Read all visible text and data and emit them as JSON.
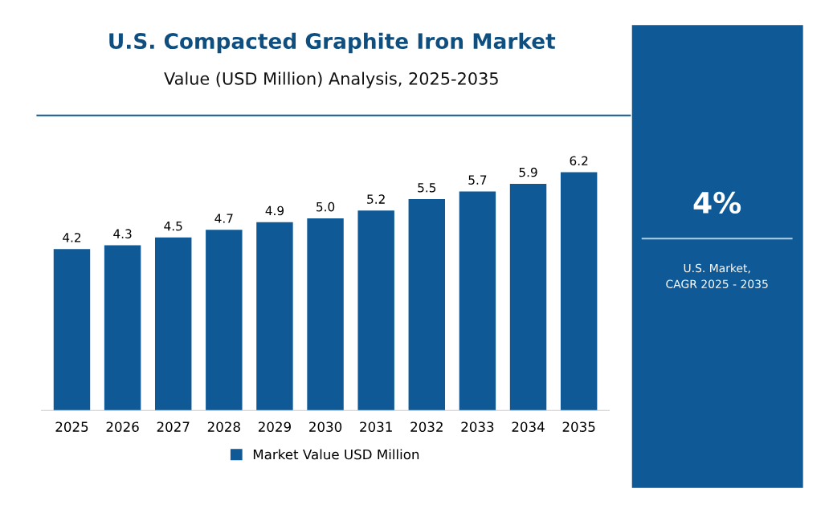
{
  "chart_data": {
    "type": "bar",
    "title": "U.S. Compacted Graphite Iron Market",
    "subtitle": "Value (USD Million) Analysis, 2025-2035",
    "categories": [
      "2025",
      "2026",
      "2027",
      "2028",
      "2029",
      "2030",
      "2031",
      "2032",
      "2033",
      "2034",
      "2035"
    ],
    "series": [
      {
        "name": "Market Value USD Million",
        "color": "#0f5a96",
        "values": [
          4.2,
          4.3,
          4.5,
          4.7,
          4.9,
          5.0,
          5.2,
          5.5,
          5.7,
          5.9,
          6.2
        ],
        "value_labels": [
          "4.2",
          "4.3",
          "4.5",
          "4.7",
          "4.9",
          "5.0",
          "5.2",
          "5.5",
          "5.7",
          "5.9",
          "6.2"
        ]
      }
    ],
    "legend": "bottom",
    "annotations": [
      "4%",
      "U.S. Market,\nCAGR 2025 - 2035"
    ]
  }
}
